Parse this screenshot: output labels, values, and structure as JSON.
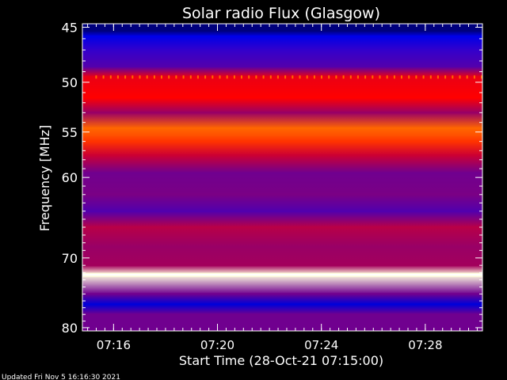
{
  "chart_data": {
    "type": "heatmap",
    "title": "Solar radio Flux (Glasgow)",
    "xlabel": "Start Time (28-Oct-21 07:15:00)",
    "ylabel": "Frequency [MHz]",
    "x_ticks": [
      "07:16",
      "07:20",
      "07:24",
      "07:28"
    ],
    "x_tick_minutes": [
      1,
      5,
      9,
      13
    ],
    "x_range_minutes": [
      -0.2,
      15.2
    ],
    "y_scale": "log",
    "y_ticks": [
      45,
      50,
      55,
      60,
      70,
      80
    ],
    "y_range": [
      44.7,
      80.5
    ],
    "colormap": [
      "#000040",
      "#0000ff",
      "#ff0000",
      "#ffff00",
      "#ffffff"
    ],
    "background_intensity": 0.42,
    "bands": [
      {
        "mhz": 45.3,
        "intensity": 0.08
      },
      {
        "mhz": 45.8,
        "intensity": 0.22
      },
      {
        "mhz": 47.0,
        "intensity": 0.3
      },
      {
        "mhz": 48.5,
        "intensity": 0.33
      },
      {
        "mhz": 49.5,
        "intensity": 0.48
      },
      {
        "mhz": 51.5,
        "intensity": 0.5
      },
      {
        "mhz": 53.0,
        "intensity": 0.4
      },
      {
        "mhz": 54.6,
        "intensity": 0.6
      },
      {
        "mhz": 55.3,
        "intensity": 0.58
      },
      {
        "mhz": 56.0,
        "intensity": 0.55
      },
      {
        "mhz": 57.5,
        "intensity": 0.45
      },
      {
        "mhz": 59.5,
        "intensity": 0.36
      },
      {
        "mhz": 62.0,
        "intensity": 0.37
      },
      {
        "mhz": 64.0,
        "intensity": 0.33
      },
      {
        "mhz": 66.0,
        "intensity": 0.43
      },
      {
        "mhz": 68.5,
        "intensity": 0.4
      },
      {
        "mhz": 71.0,
        "intensity": 0.41
      },
      {
        "mhz": 72.3,
        "intensity": 0.97
      },
      {
        "mhz": 75.0,
        "intensity": 0.36
      },
      {
        "mhz": 76.5,
        "intensity": 0.2
      },
      {
        "mhz": 78.0,
        "intensity": 0.36
      }
    ],
    "interference_mhz": 49.5
  },
  "footer": {
    "updated": "Updated Fri Nov  5 16:16:30 2021"
  }
}
